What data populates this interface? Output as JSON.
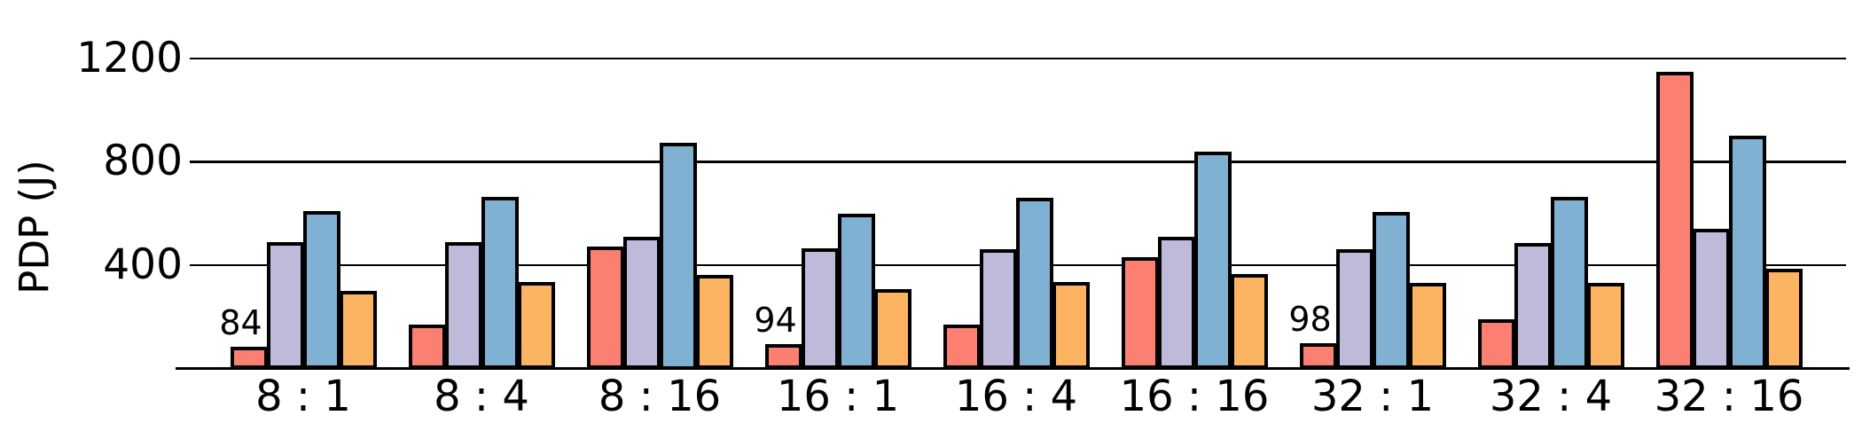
{
  "chart_data": {
    "type": "bar",
    "title": "",
    "xlabel": "",
    "ylabel": "PDP (J)",
    "categories": [
      "8 : 1",
      "8 : 4",
      "8 : 16",
      "16 : 1",
      "16 : 4",
      "16 : 16",
      "32 : 1",
      "32 : 4",
      "32 : 16"
    ],
    "series": [
      {
        "name": "salmon-series",
        "color": "#FB8072",
        "values": [
          84,
          170,
          470,
          94,
          170,
          430,
          98,
          190,
          1150
        ]
      },
      {
        "name": "lavender-series",
        "color": "#BEBADA",
        "values": [
          490,
          490,
          510,
          465,
          460,
          510,
          460,
          485,
          540
        ]
      },
      {
        "name": "blue-series",
        "color": "#80B1D3",
        "values": [
          610,
          665,
          875,
          600,
          660,
          840,
          605,
          665,
          900
        ]
      },
      {
        "name": "orange-series",
        "color": "#FDB462",
        "values": [
          300,
          335,
          360,
          305,
          335,
          365,
          330,
          330,
          385
        ]
      }
    ],
    "yticks": [
      400,
      800,
      1200
    ],
    "ylim": [
      0,
      1424
    ],
    "grid": true,
    "legend_position": "none",
    "bar_edge_color": "#000000",
    "annotations": [
      {
        "text": "84",
        "category": "8 : 1",
        "series_index": 0
      },
      {
        "text": "94",
        "category": "16 : 1",
        "series_index": 0
      },
      {
        "text": "98",
        "category": "32 : 1",
        "series_index": 0
      }
    ]
  }
}
